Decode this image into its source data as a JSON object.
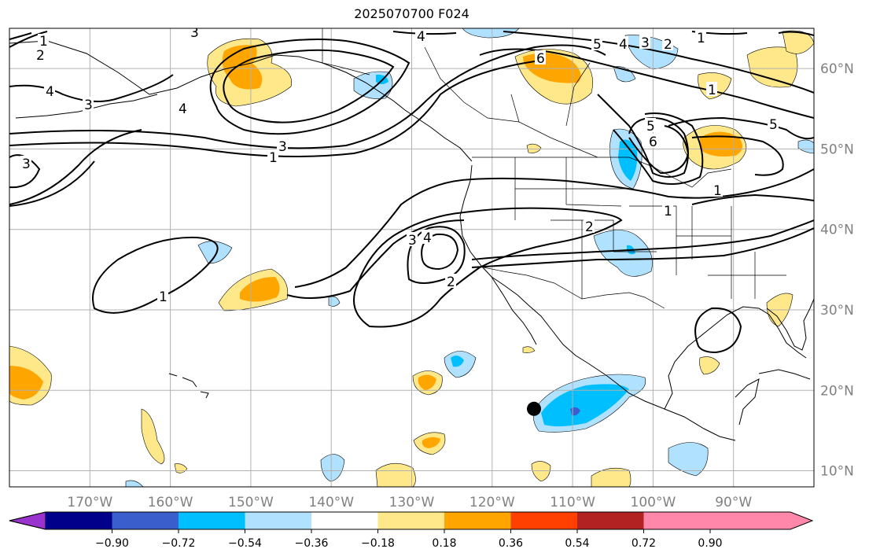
{
  "title": "2025070700 F024",
  "map": {
    "lon_labels": [
      {
        "lon": -170,
        "label": "170°W"
      },
      {
        "lon": -160,
        "label": "160°W"
      },
      {
        "lon": -150,
        "label": "150°W"
      },
      {
        "lon": -140,
        "label": "140°W"
      },
      {
        "lon": -130,
        "label": "130°W"
      },
      {
        "lon": -120,
        "label": "120°W"
      },
      {
        "lon": -110,
        "label": "110°W"
      },
      {
        "lon": -100,
        "label": "100°W"
      },
      {
        "lon": -90,
        "label": "90°W"
      }
    ],
    "lat_labels": [
      {
        "lat": 60,
        "label": "60°N"
      },
      {
        "lat": 50,
        "label": "50°N"
      },
      {
        "lat": 40,
        "label": "40°N"
      },
      {
        "lat": 30,
        "label": "30°N"
      },
      {
        "lat": 20,
        "label": "20°N"
      },
      {
        "lat": 10,
        "label": "10°N"
      }
    ],
    "lon_range": [
      -180,
      -80
    ],
    "lat_range": [
      8,
      65
    ],
    "grid": true,
    "marker": {
      "lon": -114.8,
      "lat": 17.7,
      "color": "#000000"
    }
  },
  "colorbar": {
    "colors": [
      "#9a32cd",
      "#00008b",
      "#3a5fcd",
      "#00bfff",
      "#b0e2ff",
      "#ffffff",
      "#ffe88a",
      "#ffa500",
      "#ff4000",
      "#b22222",
      "#ff88aa"
    ],
    "labels": [
      "−0.90",
      "−0.72",
      "−0.54",
      "−0.36",
      "−0.18",
      "0.18",
      "0.36",
      "0.54",
      "0.72",
      "0.90"
    ]
  },
  "contour_labels": [
    "1",
    "2",
    "3",
    "4",
    "5",
    "6"
  ]
}
